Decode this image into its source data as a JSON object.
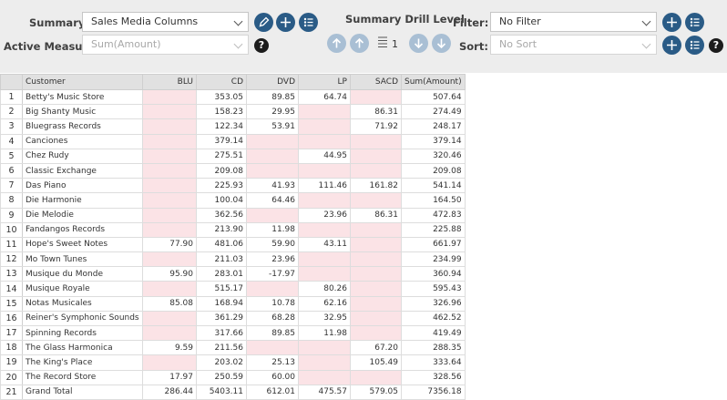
{
  "toolbar": {
    "summary_label": "Summary:",
    "summary_value": "Sales Media Columns",
    "active_measure_label": "Active Measure:",
    "active_measure_value": "Sum(Amount)",
    "drill_label": "Summary Drill Level",
    "drill_value": "1",
    "filter_label": "Filter:",
    "filter_value": "No Filter",
    "sort_label": "Sort:",
    "sort_value": "No Sort",
    "help_glyph": "?",
    "accent_color": "#2a5b86",
    "icons": [
      "edit-icon",
      "plus-icon",
      "list-icon",
      "arrow-up-icon",
      "arrow-down-icon",
      "help-icon"
    ]
  },
  "table": {
    "headers": [
      "",
      "Customer",
      "BLU",
      "CD",
      "DVD",
      "LP",
      "SACD",
      "Sum(Amount)"
    ],
    "empty_cell_color": "#fbe3e6",
    "rows": [
      [
        "1",
        "Betty's Music Store",
        "",
        "353.05",
        "89.85",
        "64.74",
        "",
        "507.64"
      ],
      [
        "2",
        "Big Shanty Music",
        "",
        "158.23",
        "29.95",
        "",
        "86.31",
        "274.49"
      ],
      [
        "3",
        "Bluegrass Records",
        "",
        "122.34",
        "53.91",
        "",
        "71.92",
        "248.17"
      ],
      [
        "4",
        "Canciones",
        "",
        "379.14",
        "",
        "",
        "",
        "379.14"
      ],
      [
        "5",
        "Chez Rudy",
        "",
        "275.51",
        "",
        "44.95",
        "",
        "320.46"
      ],
      [
        "6",
        "Classic Exchange",
        "",
        "209.08",
        "",
        "",
        "",
        "209.08"
      ],
      [
        "7",
        "Das Piano",
        "",
        "225.93",
        "41.93",
        "111.46",
        "161.82",
        "541.14"
      ],
      [
        "8",
        "Die Harmonie",
        "",
        "100.04",
        "64.46",
        "",
        "",
        "164.50"
      ],
      [
        "9",
        "Die Melodie",
        "",
        "362.56",
        "",
        "23.96",
        "86.31",
        "472.83"
      ],
      [
        "10",
        "Fandangos Records",
        "",
        "213.90",
        "11.98",
        "",
        "",
        "225.88"
      ],
      [
        "11",
        "Hope's Sweet Notes",
        "77.90",
        "481.06",
        "59.90",
        "43.11",
        "",
        "661.97"
      ],
      [
        "12",
        "Mo Town Tunes",
        "",
        "211.03",
        "23.96",
        "",
        "",
        "234.99"
      ],
      [
        "13",
        "Musique du Monde",
        "95.90",
        "283.01",
        "-17.97",
        "",
        "",
        "360.94"
      ],
      [
        "14",
        "Musique Royale",
        "",
        "515.17",
        "",
        "80.26",
        "",
        "595.43"
      ],
      [
        "15",
        "Notas Musicales",
        "85.08",
        "168.94",
        "10.78",
        "62.16",
        "",
        "326.96"
      ],
      [
        "16",
        "Reiner's Symphonic Sounds",
        "",
        "361.29",
        "68.28",
        "32.95",
        "",
        "462.52"
      ],
      [
        "17",
        "Spinning Records",
        "",
        "317.66",
        "89.85",
        "11.98",
        "",
        "419.49"
      ],
      [
        "18",
        "The Glass Harmonica",
        "9.59",
        "211.56",
        "",
        "",
        "67.20",
        "288.35"
      ],
      [
        "19",
        "The King's Place",
        "",
        "203.02",
        "25.13",
        "",
        "105.49",
        "333.64"
      ],
      [
        "20",
        "The Record Store",
        "17.97",
        "250.59",
        "60.00",
        "",
        "",
        "328.56"
      ],
      [
        "21",
        "Grand Total",
        "286.44",
        "5403.11",
        "612.01",
        "475.57",
        "579.05",
        "7356.18"
      ]
    ]
  }
}
